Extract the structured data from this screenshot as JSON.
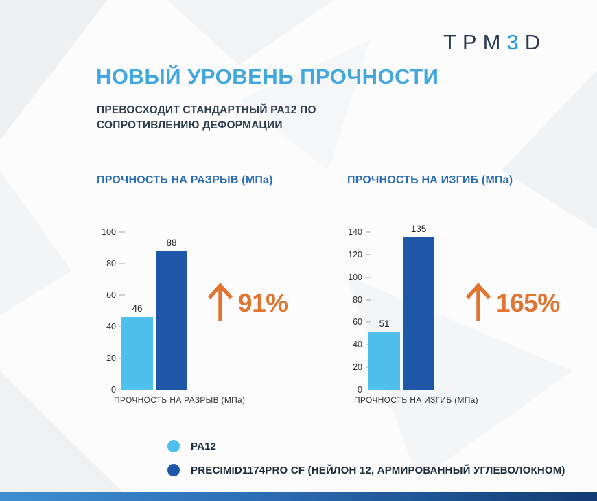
{
  "logo": {
    "prefix": "TPM",
    "digit": "3",
    "suffix": "D",
    "dark_color": "#2B3A4E",
    "blue_color": "#2196D8"
  },
  "header": {
    "title": "НОВЫЙ УРОВЕНЬ ПРОЧНОСТИ",
    "title_color": "#41A7DE",
    "subtitle_line1": "ПРЕВОСХОДИТ СТАНДАРТНЫЙ PA12 ПО",
    "subtitle_line2": "СОПРОТИВЛЕНИЮ ДЕФОРМАЦИИ",
    "subtitle_color": "#2E3D4D"
  },
  "chart_data": [
    {
      "type": "bar",
      "title": "ПРОЧНОСТЬ НА РАЗРЫВ (МПа)",
      "xlabel": "ПРОЧНОСТЬ НА РАЗРЫВ (МПа)",
      "ylabel": "",
      "categories": [
        "PA12",
        "PRECIMID1174PRO CF (НЕЙЛОН 12, АРМИРОВАННЫЙ УГЛЕВОЛОКНОМ)"
      ],
      "values": [
        46,
        88
      ],
      "ylim": [
        0,
        100
      ],
      "ytick_step": 20,
      "grid": false,
      "data_labels": true,
      "annotation": {
        "direction": "up",
        "label": "91%",
        "color": "#E2742F"
      }
    },
    {
      "type": "bar",
      "title": "ПРОЧНОСТЬ НА ИЗГИБ (МПа)",
      "xlabel": "ПРОЧНОСТЬ НА ИЗГИБ (МПа)",
      "ylabel": "",
      "categories": [
        "PA12",
        "PRECIMID1174PRO CF (НЕЙЛОН 12, АРМИРОВАННЫЙ УГЛЕВОЛОКНОМ)"
      ],
      "values": [
        51,
        135
      ],
      "ylim": [
        0,
        140
      ],
      "ytick_step": 20,
      "grid": false,
      "data_labels": true,
      "annotation": {
        "direction": "up",
        "label": "165%",
        "color": "#E2742F"
      }
    }
  ],
  "series_colors": [
    "#4FC0EE",
    "#1E56A8"
  ],
  "legend": [
    {
      "label": "PA12",
      "color": "#4FC0EE"
    },
    {
      "label": "PRECIMID1174PRO CF (НЕЙЛОН 12, АРМИРОВАННЫЙ УГЛЕВОЛОКНОМ)",
      "color": "#1E56A8"
    }
  ],
  "bottom_bar_gradient": [
    "#3F8FD2",
    "#2A6CB4",
    "#123C72"
  ]
}
